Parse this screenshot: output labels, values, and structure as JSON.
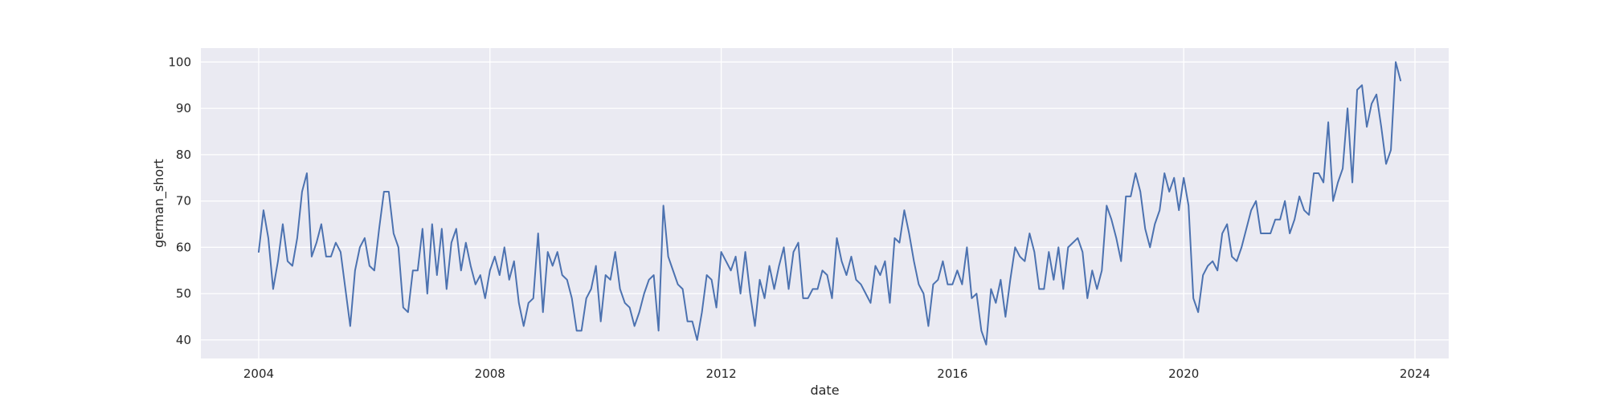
{
  "chart_data": {
    "type": "line",
    "title": "",
    "xlabel": "date",
    "ylabel": "german_short",
    "x_tick_labels": [
      "2004",
      "2008",
      "2012",
      "2016",
      "2020",
      "2024"
    ],
    "y_tick_labels": [
      "40",
      "50",
      "60",
      "70",
      "80",
      "90",
      "100"
    ],
    "xlim": [
      "2003-01",
      "2024-08"
    ],
    "ylim": [
      36,
      103
    ],
    "grid": true,
    "legend": "none",
    "colors": {
      "background": "#eaeaf2",
      "grid": "#ffffff",
      "line": "#4c72b0"
    },
    "series": [
      {
        "x_start": "2004-01",
        "x_frequency": "monthly",
        "values": [
          59,
          68,
          62,
          51,
          57,
          65,
          57,
          56,
          62,
          72,
          76,
          58,
          61,
          65,
          58,
          58,
          61,
          59,
          51,
          43,
          55,
          60,
          62,
          56,
          55,
          64,
          72,
          72,
          63,
          60,
          47,
          46,
          55,
          55,
          64,
          50,
          65,
          54,
          64,
          51,
          61,
          64,
          55,
          61,
          56,
          52,
          54,
          49,
          55,
          58,
          54,
          60,
          53,
          57,
          48,
          43,
          48,
          49,
          63,
          46,
          59,
          56,
          59,
          54,
          53,
          49,
          42,
          42,
          49,
          51,
          56,
          44,
          54,
          53,
          59,
          51,
          48,
          47,
          43,
          46,
          50,
          53,
          54,
          42,
          69,
          58,
          55,
          52,
          51,
          44,
          44,
          40,
          46,
          54,
          53,
          47,
          59,
          57,
          55,
          58,
          50,
          59,
          50,
          43,
          53,
          49,
          56,
          51,
          56,
          60,
          51,
          59,
          61,
          49,
          49,
          51,
          51,
          55,
          54,
          49,
          62,
          57,
          54,
          58,
          53,
          52,
          50,
          48,
          56,
          54,
          57,
          48,
          62,
          61,
          68,
          63,
          57,
          52,
          50,
          43,
          52,
          53,
          57,
          52,
          52,
          55,
          52,
          60,
          49,
          50,
          42,
          39,
          51,
          48,
          53,
          45,
          53,
          60,
          58,
          57,
          63,
          59,
          51,
          51,
          59,
          53,
          60,
          51,
          60,
          61,
          62,
          59,
          49,
          55,
          51,
          55,
          69,
          66,
          62,
          57,
          71,
          71,
          76,
          72,
          64,
          60,
          65,
          68,
          76,
          72,
          75,
          68,
          75,
          69,
          49,
          46,
          54,
          56,
          57,
          55,
          63,
          65,
          58,
          57,
          60,
          64,
          68,
          70,
          63,
          63,
          63,
          66,
          66,
          70,
          63,
          66,
          71,
          68,
          67,
          76,
          76,
          74,
          87,
          70,
          74,
          77,
          90,
          74,
          94,
          95,
          86,
          91,
          93,
          86,
          78,
          81,
          100,
          96
        ]
      }
    ]
  }
}
